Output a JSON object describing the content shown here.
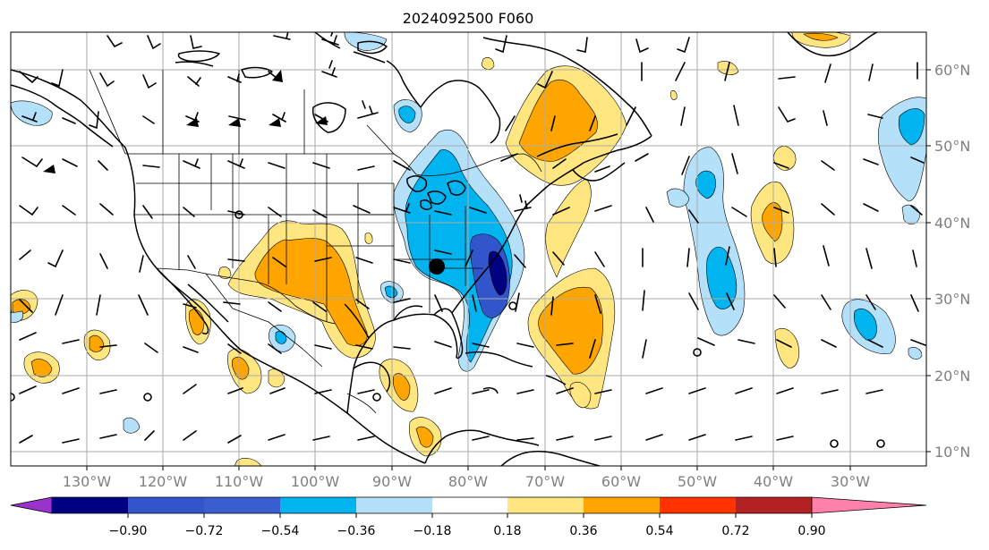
{
  "title": "2024092500 F060",
  "lon_labels": [
    "130°W",
    "120°W",
    "110°W",
    "100°W",
    "90°W",
    "80°W",
    "70°W",
    "60°W",
    "50°W",
    "40°W",
    "30°W"
  ],
  "lat_labels": [
    "60°N",
    "50°N",
    "40°N",
    "30°N",
    "20°N",
    "10°N"
  ],
  "colorbar": {
    "ticks": [
      "−0.90",
      "−0.72",
      "−0.54",
      "−0.36",
      "−0.18",
      "0.18",
      "0.36",
      "0.54",
      "0.72",
      "0.90"
    ],
    "colors": {
      "under": "#9933cc",
      "bins": [
        "#000080",
        "#3355cc",
        "#00b4f0",
        "#b4e0fa",
        "#ffffff",
        "#ffe680",
        "#ffa500",
        "#ff3300",
        "#b22222"
      ],
      "over": "#ff80aa"
    }
  },
  "colors": {
    "pos_light": "#ffe680",
    "pos_mid": "#ffa500",
    "neg_light": "#b4e0fa",
    "neg_mid": "#00b4f0",
    "neg_strong": "#3355cc",
    "neg_max": "#000080",
    "grid": "#aaaaaa",
    "label_gray": "#808080"
  }
}
